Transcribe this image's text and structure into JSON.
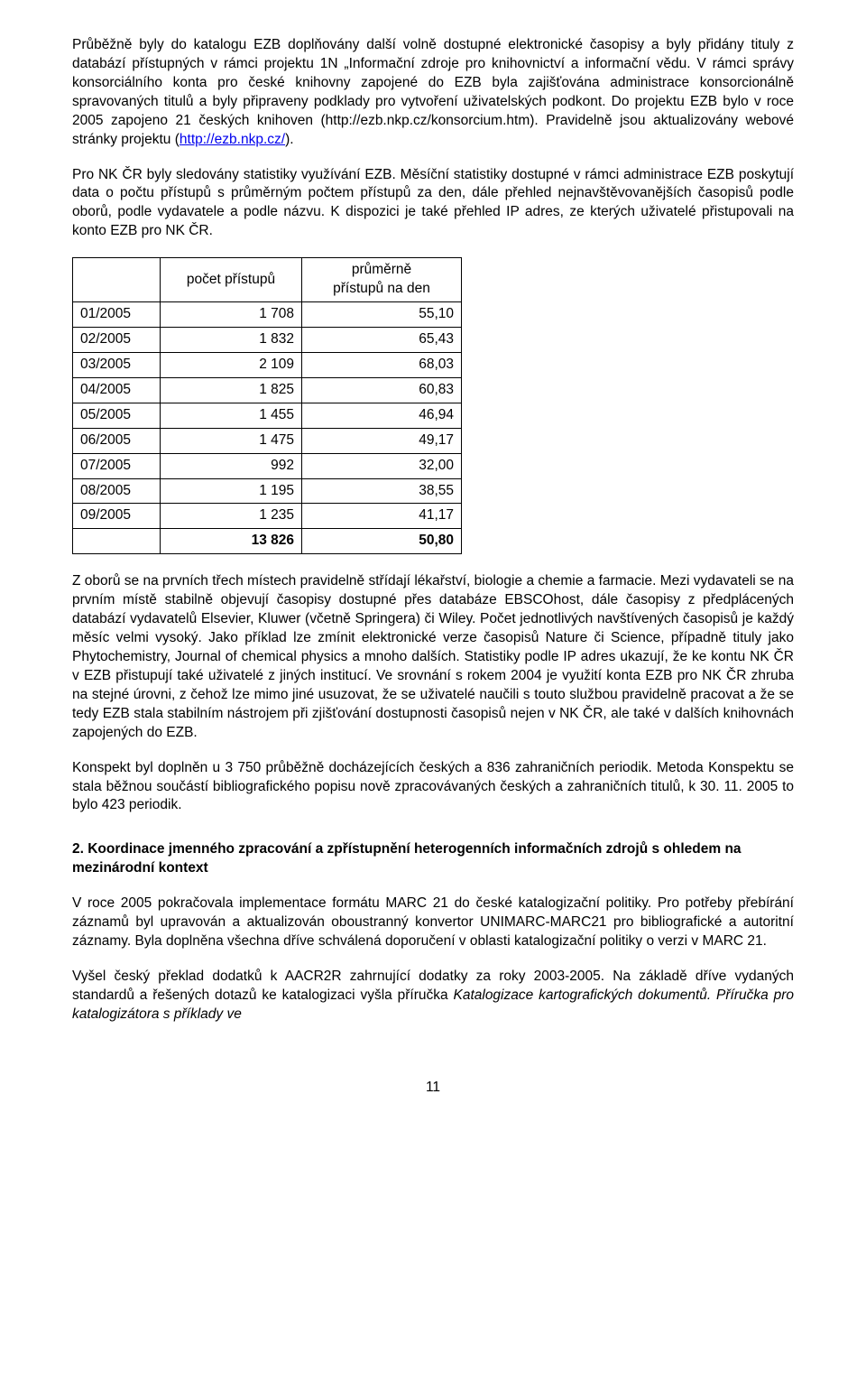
{
  "para1_a": "Průběžně byly do katalogu EZB doplňovány další volně dostupné elektronické časopisy a byly přidány tituly z databází přístupných v rámci projektu 1N „Informační zdroje pro knihovnictví a informační vědu. V rámci správy konsorciálního konta pro české knihovny zapojené do EZB byla  zajišťována administrace konsorcionálně spravovaných titulů a byly připraveny podklady pro vytvoření uživatelských podkont. Do projektu EZB bylo v roce 2005 zapojeno 21 českých knihoven (http://ezb.nkp.cz/konsorcium.htm). Pravidelně jsou aktualizovány webové stránky projektu (",
  "para1_link": "http://ezb.nkp.cz/",
  "para1_b": ").",
  "para2": "Pro NK ČR byly sledovány statistiky využívání EZB. Měsíční statistiky dostupné v rámci administrace EZB poskytují data o počtu přístupů s průměrným počtem přístupů za den, dále přehled nejnavštěvovanějších časopisů podle oborů, podle vydavatele a podle názvu. K dispozici je také přehled IP adres, ze kterých uživatelé přistupovali na konto EZB pro NK ČR.",
  "table": {
    "header_count": "počet přístupů",
    "header_avg_l1": "průměrně",
    "header_avg_l2": "přístupů na den",
    "rows": [
      {
        "m": "01/2005",
        "count": "1 708",
        "avg": "55,10"
      },
      {
        "m": "02/2005",
        "count": "1 832",
        "avg": "65,43"
      },
      {
        "m": "03/2005",
        "count": "2 109",
        "avg": "68,03"
      },
      {
        "m": "04/2005",
        "count": "1 825",
        "avg": "60,83"
      },
      {
        "m": "05/2005",
        "count": "1 455",
        "avg": "46,94"
      },
      {
        "m": "06/2005",
        "count": "1 475",
        "avg": "49,17"
      },
      {
        "m": "07/2005",
        "count": "992",
        "avg": "32,00"
      },
      {
        "m": "08/2005",
        "count": "1 195",
        "avg": "38,55"
      },
      {
        "m": "09/2005",
        "count": "1 235",
        "avg": "41,17"
      }
    ],
    "total_count": "13 826",
    "total_avg": "50,80"
  },
  "para3": "Z oborů se na prvních třech místech pravidelně střídají lékařství, biologie a chemie a farmacie. Mezi vydavateli se na prvním místě stabilně objevují časopisy dostupné přes databáze EBSCOhost, dále časopisy z předplácených databází vydavatelů Elsevier, Kluwer (včetně Springera) či Wiley. Počet jednotlivých navštívených časopisů je každý měsíc velmi vysoký. Jako příklad lze zmínit elektronické verze časopisů Nature či Science, případně tituly jako Phytochemistry, Journal of chemical physics a mnoho dalších. Statistiky podle IP adres ukazují, že ke kontu NK ČR v EZB přistupují také uživatelé z jiných institucí. Ve srovnání s rokem 2004 je využití konta EZB pro NK ČR zhruba na stejné úrovni, z čehož lze mimo jiné usuzovat, že se uživatelé naučili s touto službou pravidelně pracovat a že se tedy EZB stala stabilním nástrojem při zjišťování dostupnosti časopisů nejen v NK ČR, ale také v dalších knihovnách zapojených do EZB.",
  "para4": "Konspekt byl doplněn u 3 750  průběžně docházejících českých a 836 zahraničních periodik.  Metoda Konspektu se stala běžnou součástí bibliografického popisu nově zpracovávaných českých a zahraničních titulů, k 30. 11. 2005 to bylo 423  periodik.",
  "heading2": "2. Koordinace jmenného zpracování a zpřístupnění heterogenních informačních zdrojů s ohledem na mezinárodní kontext",
  "para5": "V roce 2005 pokračovala  implementace formátu MARC 21 do české katalogizační politiky. Pro potřeby přebírání záznamů byl upravován a aktualizován oboustranný konvertor UNIMARC-MARC21 pro bibliografické a autoritní záznamy. Byla doplněna všechna dříve  schválená doporučení v oblasti katalogizační politiky o verzi v MARC 21.",
  "para6_a": "Vyšel český překlad dodatků k AACR2R zahrnující dodatky za roky 2003-2005. Na základě dříve vydaných standardů a řešených dotazů ke katalogizaci vyšla příručka ",
  "para6_i": "Katalogizace kartografických dokumentů. Příručka pro katalogizátora s příklady ve",
  "page_number": "11"
}
